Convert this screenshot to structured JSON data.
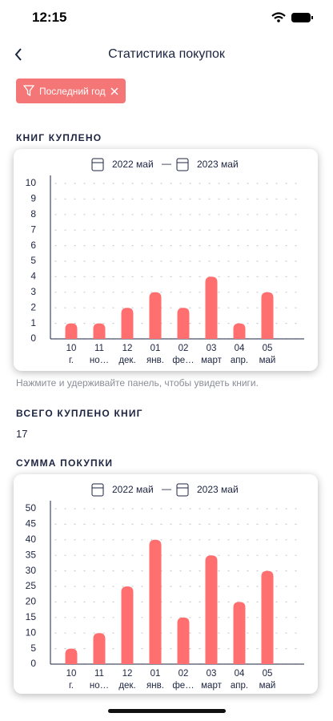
{
  "status_bar": {
    "time": "12:15"
  },
  "header": {
    "title": "Статистика покупок"
  },
  "filter": {
    "label": "Последний год"
  },
  "chart_data": [
    {
      "type": "bar",
      "title": "КНИГ КУПЛЕНО",
      "range_start": "2022 май",
      "range_separator": "—",
      "range_end": "2023 май",
      "categories": [
        "10\nг.",
        "11\nно…",
        "12\nдек.",
        "01\nянв.",
        "02\nфе…",
        "03\nмарт",
        "04\nапр.",
        "05\nмай"
      ],
      "values": [
        1,
        1,
        2,
        3,
        2,
        4,
        1,
        3
      ],
      "color": "#ff6f6f",
      "ylim": [
        0,
        10
      ],
      "yticks": [
        0,
        1,
        2,
        3,
        4,
        5,
        6,
        7,
        8,
        9,
        10
      ],
      "grid": true
    },
    {
      "type": "bar",
      "title": "СУММА ПОКУПКИ",
      "range_start": "2022 май",
      "range_separator": "—",
      "range_end": "2023 май",
      "categories": [
        "10\nг.",
        "11\nно…",
        "12\nдек.",
        "01\nянв.",
        "02\nфе…",
        "03\nмарт",
        "04\nапр.",
        "05\nмай"
      ],
      "values": [
        5,
        10,
        25,
        40,
        15,
        35,
        20,
        30
      ],
      "color": "#ff6f6f",
      "ylim": [
        0,
        50
      ],
      "yticks": [
        0,
        5,
        10,
        15,
        20,
        25,
        30,
        35,
        40,
        45,
        50
      ],
      "grid": true
    }
  ],
  "hint": "Нажмите и удерживайте панель, чтобы увидеть книги.",
  "total": {
    "label": "ВСЕГО КУПЛЕНО КНИГ",
    "value": "17"
  }
}
